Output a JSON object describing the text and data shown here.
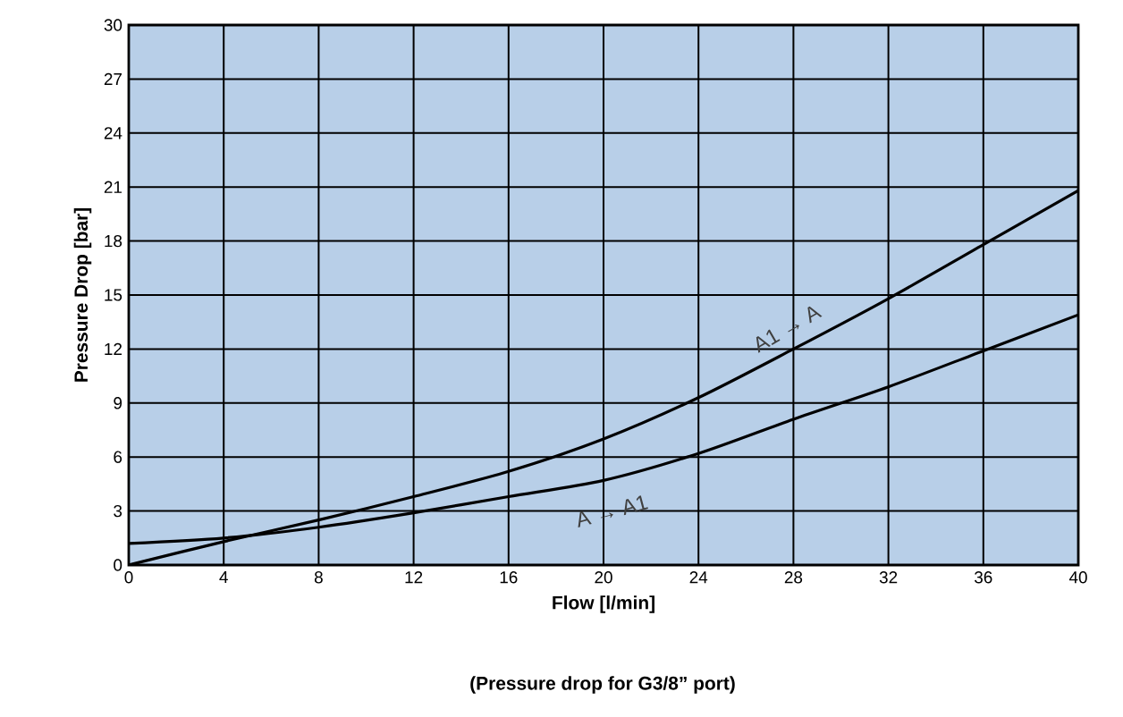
{
  "chart_data": {
    "type": "line",
    "xlabel": "Flow  [l/min]",
    "ylabel": "Pressure Drop [bar]",
    "xlim": [
      0,
      40
    ],
    "ylim": [
      0,
      30
    ],
    "xticks": [
      0,
      4,
      8,
      12,
      16,
      20,
      24,
      28,
      32,
      36,
      40
    ],
    "yticks": [
      0,
      3,
      6,
      9,
      12,
      15,
      18,
      21,
      24,
      27,
      30
    ],
    "grid": true,
    "marker": "none",
    "line_style": "solid",
    "series": [
      {
        "color": "#000000",
        "x": [
          0,
          4,
          8,
          12,
          16,
          20,
          24,
          28,
          32,
          36,
          40
        ],
        "values": [
          0,
          1.3,
          2.5,
          3.8,
          5.2,
          7.0,
          9.3,
          12.0,
          14.8,
          17.8,
          20.8
        ]
      },
      {
        "color": "#000000",
        "x": [
          0,
          4,
          8,
          12,
          16,
          20,
          24,
          28,
          32,
          36,
          40
        ],
        "values": [
          1.2,
          1.5,
          2.1,
          2.9,
          3.8,
          4.7,
          6.2,
          8.1,
          9.9,
          11.9,
          13.9
        ]
      }
    ],
    "annotations": [
      {
        "text": "A1 → A",
        "x": 28,
        "y": 12.5
      },
      {
        "text": "A → A1",
        "x": 20,
        "y": 4.7
      },
      "(Pressure drop for G3/8” port)"
    ]
  }
}
